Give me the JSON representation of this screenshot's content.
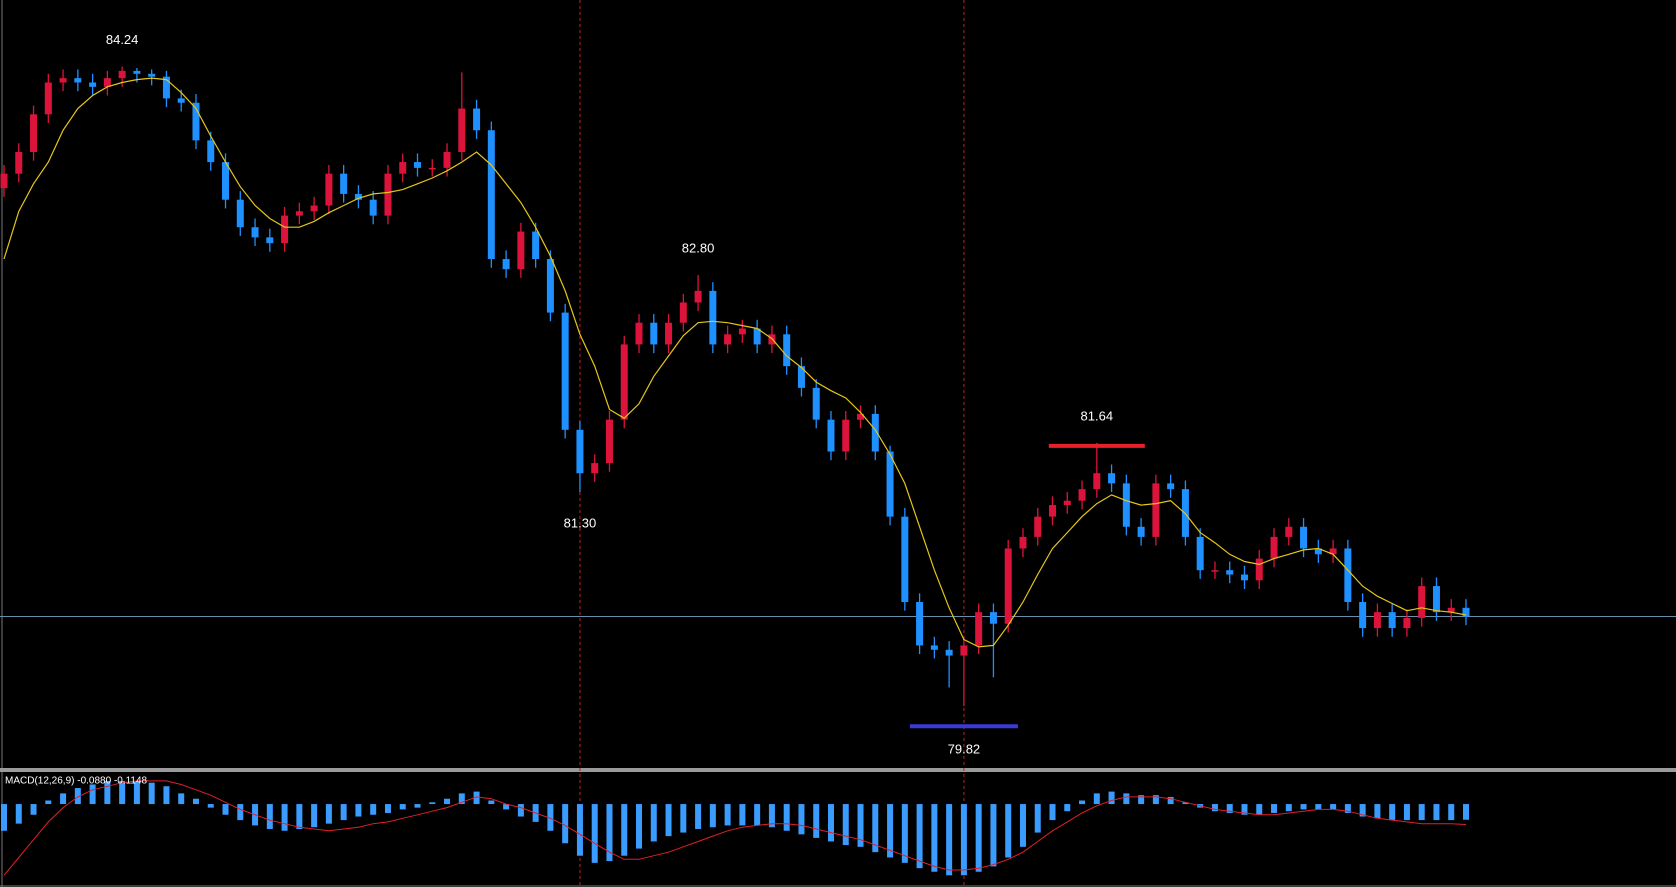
{
  "chart_data": [
    {
      "type": "candlestick",
      "up_color": "#dc143c",
      "down_color": "#1e90ff",
      "ylim": [
        79.4,
        84.7
      ],
      "open": [
        83.4,
        83.5,
        83.65,
        83.91,
        84.13,
        84.16,
        84.13,
        84.1,
        84.16,
        84.21,
        84.19,
        84.17,
        84.02,
        83.99,
        83.73,
        83.58,
        83.32,
        83.13,
        83.06,
        83.02,
        83.21,
        83.24,
        83.28,
        83.5,
        83.36,
        83.32,
        83.21,
        83.5,
        83.58,
        83.54,
        83.54,
        83.65,
        83.95,
        83.8,
        82.91,
        82.84,
        83.1,
        82.91,
        82.54,
        81.73,
        81.43,
        81.5,
        81.8,
        82.32,
        82.47,
        82.32,
        82.47,
        82.61,
        82.69,
        82.32,
        82.39,
        82.43,
        82.32,
        82.39,
        82.17,
        82.02,
        81.8,
        81.58,
        81.8,
        81.84,
        81.58,
        81.13,
        80.54,
        80.24,
        80.21,
        80.17,
        80.24,
        80.47,
        80.39,
        80.91,
        80.99,
        81.13,
        81.21,
        81.24,
        81.32,
        81.43,
        81.36,
        81.06,
        80.99,
        81.36,
        81.32,
        80.99,
        80.76,
        80.76,
        80.73,
        80.69,
        80.84,
        80.99,
        81.06,
        80.91,
        80.87,
        80.91,
        80.54,
        80.36,
        80.47,
        80.36,
        80.43,
        80.65,
        80.47,
        80.5
      ],
      "high": [
        83.56,
        83.71,
        83.97,
        84.19,
        84.22,
        84.22,
        84.19,
        84.21,
        84.24,
        84.23,
        84.22,
        84.21,
        84.08,
        84.05,
        83.79,
        83.64,
        83.38,
        83.19,
        83.12,
        83.27,
        83.3,
        83.34,
        83.56,
        83.56,
        83.42,
        83.38,
        83.56,
        83.64,
        83.64,
        83.6,
        83.71,
        84.2,
        84.01,
        83.86,
        82.97,
        83.16,
        83.16,
        82.97,
        82.6,
        81.79,
        81.56,
        81.86,
        82.38,
        82.53,
        82.53,
        82.53,
        82.67,
        82.8,
        82.75,
        82.45,
        82.49,
        82.49,
        82.45,
        82.45,
        82.23,
        82.08,
        81.86,
        81.86,
        81.9,
        81.9,
        81.62,
        81.19,
        80.6,
        80.3,
        80.27,
        80.3,
        80.53,
        80.53,
        80.97,
        81.05,
        81.19,
        81.27,
        81.3,
        81.38,
        81.64,
        81.49,
        81.42,
        81.12,
        81.42,
        81.42,
        81.38,
        81.05,
        80.82,
        80.82,
        80.79,
        80.9,
        81.05,
        81.12,
        81.12,
        80.97,
        80.97,
        80.97,
        80.6,
        80.53,
        80.53,
        80.49,
        80.71,
        80.71,
        80.56,
        80.56
      ],
      "low": [
        83.34,
        83.44,
        83.59,
        83.85,
        84.07,
        84.07,
        84.04,
        84.04,
        84.1,
        84.13,
        84.11,
        83.96,
        83.93,
        83.67,
        83.52,
        83.26,
        83.07,
        83.0,
        82.96,
        82.96,
        83.15,
        83.18,
        83.22,
        83.3,
        83.26,
        83.15,
        83.15,
        83.44,
        83.48,
        83.48,
        83.48,
        83.59,
        83.74,
        82.85,
        82.78,
        82.78,
        82.85,
        82.48,
        81.67,
        81.3,
        81.37,
        81.44,
        81.74,
        82.26,
        82.26,
        82.26,
        82.41,
        82.55,
        82.26,
        82.26,
        82.33,
        82.26,
        82.26,
        82.11,
        81.96,
        81.74,
        81.52,
        81.52,
        81.74,
        81.52,
        81.07,
        80.48,
        80.18,
        80.15,
        79.95,
        79.82,
        80.18,
        80.02,
        80.33,
        80.85,
        80.93,
        81.07,
        81.15,
        81.18,
        81.26,
        81.3,
        81.0,
        80.93,
        80.93,
        81.26,
        80.93,
        80.7,
        80.7,
        80.67,
        80.63,
        80.63,
        80.78,
        80.93,
        80.85,
        80.81,
        80.81,
        80.48,
        80.3,
        80.3,
        80.3,
        80.3,
        80.37,
        80.41,
        80.41,
        80.38
      ],
      "close": [
        83.5,
        83.65,
        83.91,
        84.13,
        84.16,
        84.13,
        84.1,
        84.16,
        84.21,
        84.19,
        84.17,
        84.02,
        83.99,
        83.73,
        83.58,
        83.32,
        83.13,
        83.06,
        83.02,
        83.21,
        83.24,
        83.28,
        83.5,
        83.36,
        83.32,
        83.21,
        83.5,
        83.58,
        83.54,
        83.54,
        83.65,
        83.95,
        83.8,
        82.91,
        82.84,
        83.1,
        82.91,
        82.54,
        81.73,
        81.43,
        81.5,
        81.8,
        82.32,
        82.47,
        82.32,
        82.47,
        82.61,
        82.69,
        82.32,
        82.39,
        82.43,
        82.32,
        82.39,
        82.17,
        82.02,
        81.8,
        81.58,
        81.8,
        81.84,
        81.58,
        81.13,
        80.54,
        80.24,
        80.21,
        80.17,
        80.24,
        80.47,
        80.39,
        80.91,
        80.99,
        81.13,
        81.21,
        81.24,
        81.32,
        81.43,
        81.36,
        81.06,
        80.99,
        81.36,
        81.32,
        80.99,
        80.76,
        80.76,
        80.73,
        80.69,
        80.84,
        80.99,
        81.06,
        80.91,
        80.87,
        80.91,
        80.54,
        80.36,
        80.47,
        80.36,
        80.43,
        80.65,
        80.47,
        80.5,
        80.44
      ],
      "ma": {
        "color": "#e6c619",
        "values": [
          82.91,
          83.24,
          83.43,
          83.58,
          83.8,
          83.95,
          84.04,
          84.1,
          84.13,
          84.15,
          84.16,
          84.15,
          84.06,
          83.95,
          83.76,
          83.58,
          83.41,
          83.28,
          83.19,
          83.13,
          83.13,
          83.17,
          83.23,
          83.28,
          83.33,
          83.36,
          83.37,
          83.39,
          83.43,
          83.47,
          83.52,
          83.58,
          83.65,
          83.56,
          83.43,
          83.3,
          83.13,
          82.93,
          82.69,
          82.39,
          82.17,
          81.87,
          81.81,
          81.91,
          82.1,
          82.24,
          82.38,
          82.47,
          82.48,
          82.47,
          82.45,
          82.43,
          82.36,
          82.24,
          82.16,
          82.06,
          82.0,
          81.95,
          81.85,
          81.73,
          81.56,
          81.36,
          81.06,
          80.76,
          80.5,
          80.28,
          80.23,
          80.24,
          80.38,
          80.54,
          80.73,
          80.91,
          81.02,
          81.13,
          81.22,
          81.28,
          81.24,
          81.21,
          81.22,
          81.24,
          81.15,
          81.02,
          80.95,
          80.87,
          80.82,
          80.8,
          80.84,
          80.87,
          80.9,
          80.91,
          80.87,
          80.76,
          80.65,
          80.58,
          80.53,
          80.48,
          80.5,
          80.48,
          80.47,
          80.45
        ]
      },
      "price_line": 80.44,
      "vlines": [
        39,
        65
      ],
      "annotations": [
        {
          "value": 84.24,
          "label": "84.24",
          "index": 8,
          "side": "high"
        },
        {
          "value": 82.8,
          "label": "82.80",
          "index": 47,
          "side": "high"
        },
        {
          "value": 81.3,
          "label": "81.30",
          "index": 39,
          "side": "low"
        },
        {
          "value": 81.64,
          "label": "81.64",
          "index": 74,
          "side": "high",
          "bar_color": "#e8202a"
        },
        {
          "value": 79.82,
          "label": "79.82",
          "index": 65,
          "side": "low",
          "bar_color": "#3a3ad6"
        }
      ]
    },
    {
      "type": "macd",
      "title": "MACD(12,26,9) -0.0880 -0.1148",
      "ylim": [
        -0.46,
        0.18
      ],
      "histogram": {
        "color": "#3b9cff",
        "values": [
          -0.15,
          -0.11,
          -0.06,
          0.02,
          0.06,
          0.09,
          0.11,
          0.13,
          0.13,
          0.13,
          0.12,
          0.1,
          0.06,
          0.03,
          -0.02,
          -0.06,
          -0.09,
          -0.12,
          -0.14,
          -0.15,
          -0.14,
          -0.13,
          -0.11,
          -0.09,
          -0.07,
          -0.06,
          -0.05,
          -0.03,
          -0.02,
          0.01,
          0.03,
          0.06,
          0.07,
          0.02,
          -0.03,
          -0.07,
          -0.1,
          -0.15,
          -0.22,
          -0.29,
          -0.33,
          -0.32,
          -0.29,
          -0.25,
          -0.21,
          -0.18,
          -0.16,
          -0.14,
          -0.13,
          -0.12,
          -0.12,
          -0.12,
          -0.13,
          -0.15,
          -0.17,
          -0.19,
          -0.21,
          -0.23,
          -0.24,
          -0.27,
          -0.3,
          -0.33,
          -0.36,
          -0.38,
          -0.4,
          -0.4,
          -0.38,
          -0.35,
          -0.3,
          -0.24,
          -0.16,
          -0.09,
          -0.04,
          0.02,
          0.06,
          0.07,
          0.06,
          0.05,
          0.05,
          0.04,
          0.01,
          -0.02,
          -0.04,
          -0.05,
          -0.06,
          -0.06,
          -0.05,
          -0.04,
          -0.03,
          -0.03,
          -0.03,
          -0.05,
          -0.07,
          -0.08,
          -0.09,
          -0.09,
          -0.09,
          -0.09,
          -0.09,
          -0.088
        ]
      },
      "signal": {
        "color": "#e0202a",
        "values": [
          -0.4,
          -0.3,
          -0.2,
          -0.1,
          -0.02,
          0.04,
          0.08,
          0.1,
          0.12,
          0.13,
          0.13,
          0.13,
          0.11,
          0.08,
          0.05,
          0.01,
          -0.03,
          -0.06,
          -0.09,
          -0.11,
          -0.13,
          -0.14,
          -0.15,
          -0.14,
          -0.13,
          -0.11,
          -0.1,
          -0.08,
          -0.06,
          -0.04,
          -0.02,
          0.01,
          0.04,
          0.03,
          0.0,
          -0.02,
          -0.05,
          -0.08,
          -0.12,
          -0.17,
          -0.22,
          -0.27,
          -0.31,
          -0.31,
          -0.29,
          -0.27,
          -0.24,
          -0.21,
          -0.18,
          -0.15,
          -0.13,
          -0.12,
          -0.11,
          -0.11,
          -0.12,
          -0.14,
          -0.16,
          -0.18,
          -0.2,
          -0.23,
          -0.26,
          -0.29,
          -0.32,
          -0.35,
          -0.37,
          -0.37,
          -0.36,
          -0.34,
          -0.31,
          -0.27,
          -0.21,
          -0.15,
          -0.1,
          -0.05,
          -0.01,
          0.02,
          0.04,
          0.04,
          0.04,
          0.03,
          0.01,
          -0.01,
          -0.03,
          -0.04,
          -0.05,
          -0.06,
          -0.06,
          -0.05,
          -0.04,
          -0.03,
          -0.03,
          -0.04,
          -0.06,
          -0.08,
          -0.09,
          -0.1,
          -0.11,
          -0.11,
          -0.11,
          -0.1148
        ]
      }
    }
  ]
}
